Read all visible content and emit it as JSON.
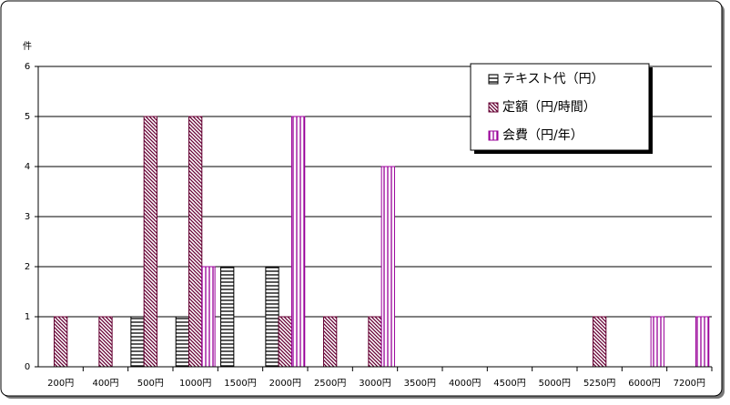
{
  "chart_data": {
    "type": "bar",
    "y_label": "件",
    "categories": [
      "200円",
      "400円",
      "500円",
      "1000円",
      "1500円",
      "2000円",
      "2500円",
      "3000円",
      "3500円",
      "4000円",
      "4500円",
      "5000円",
      "5250円",
      "6000円",
      "7200円"
    ],
    "series": [
      {
        "name": "テキスト代（円）",
        "color": "#000000",
        "hatch": "horizontal",
        "values": [
          null,
          null,
          1,
          1,
          2,
          2,
          null,
          null,
          null,
          null,
          null,
          null,
          null,
          null,
          null
        ]
      },
      {
        "name": "定額（円/時間）",
        "color": "#660033",
        "hatch": "diagonal",
        "values": [
          1,
          1,
          5,
          5,
          null,
          1,
          1,
          1,
          null,
          null,
          null,
          null,
          1,
          null,
          null
        ]
      },
      {
        "name": "会費（円/年）",
        "color": "#990099",
        "hatch": "vertical",
        "values": [
          null,
          null,
          null,
          2,
          null,
          5,
          null,
          4,
          null,
          null,
          null,
          null,
          null,
          1,
          1
        ]
      }
    ],
    "ylim": [
      0,
      6
    ],
    "yticks": [
      0,
      1,
      2,
      3,
      4,
      5,
      6
    ],
    "grid": true
  }
}
